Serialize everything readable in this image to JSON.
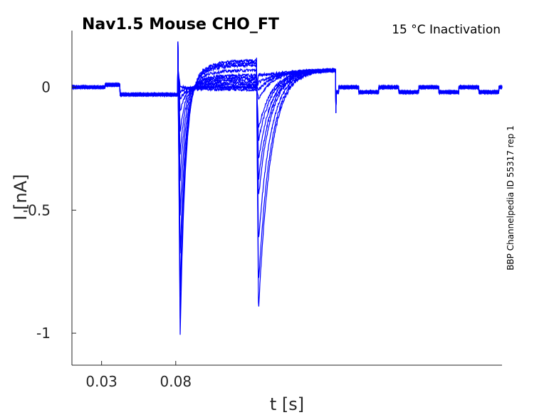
{
  "chart_data": {
    "type": "line",
    "title": "Nav1.5  Mouse  CHO_FT",
    "condition": "15 °C  Inactivation",
    "side_label": "BBP Channelpedia ID 55317 rep 1",
    "xlabel": "t [s]",
    "ylabel": "I [nA]",
    "xlim": [
      0.01,
      0.3
    ],
    "ylim": [
      -1.13,
      0.23
    ],
    "x_ticks": [
      {
        "value": 0.03,
        "label": "0.03"
      },
      {
        "value": 0.08,
        "label": "0.08"
      }
    ],
    "y_ticks": [
      {
        "value": 0,
        "label": "0"
      },
      {
        "value": -0.5,
        "label": "-0.5"
      },
      {
        "value": -1,
        "label": "-1"
      }
    ],
    "grid": false,
    "line_color": "#0000ff",
    "series_count": 12,
    "baseline_segments": [
      {
        "x": [
          0.01,
          0.0325
        ],
        "y": 0.0
      },
      {
        "x": [
          0.0325,
          0.0425
        ],
        "y": 0.01
      },
      {
        "x": [
          0.0425,
          0.0815
        ],
        "y": -0.03
      }
    ],
    "first_pulse": {
      "start": 0.0815,
      "end": 0.1345,
      "peak_time": 0.083,
      "peak_currents": [
        -1.01,
        -0.94,
        -0.83,
        -0.68,
        -0.52,
        -0.38,
        -0.27,
        -0.18,
        -0.1,
        -0.05,
        -0.02,
        0.0
      ],
      "steady_currents": [
        0.11,
        0.1,
        0.09,
        0.07,
        0.05,
        0.04,
        0.03,
        0.02,
        0.01,
        0.0,
        0.0,
        -0.01
      ]
    },
    "second_pulse": {
      "start": 0.1345,
      "end": 0.188,
      "peak_time": 0.1358,
      "peak_currents": [
        -0.91,
        -0.8,
        -0.63,
        -0.45,
        -0.38,
        -0.3,
        -0.22,
        -0.17,
        -0.05,
        -0.01,
        0.02,
        0.05
      ],
      "steady_current": 0.07
    },
    "tail": {
      "start": 0.188,
      "level_a": 0.0,
      "level_b": -0.02,
      "period": 0.0135,
      "offset": 0.0018
    }
  }
}
